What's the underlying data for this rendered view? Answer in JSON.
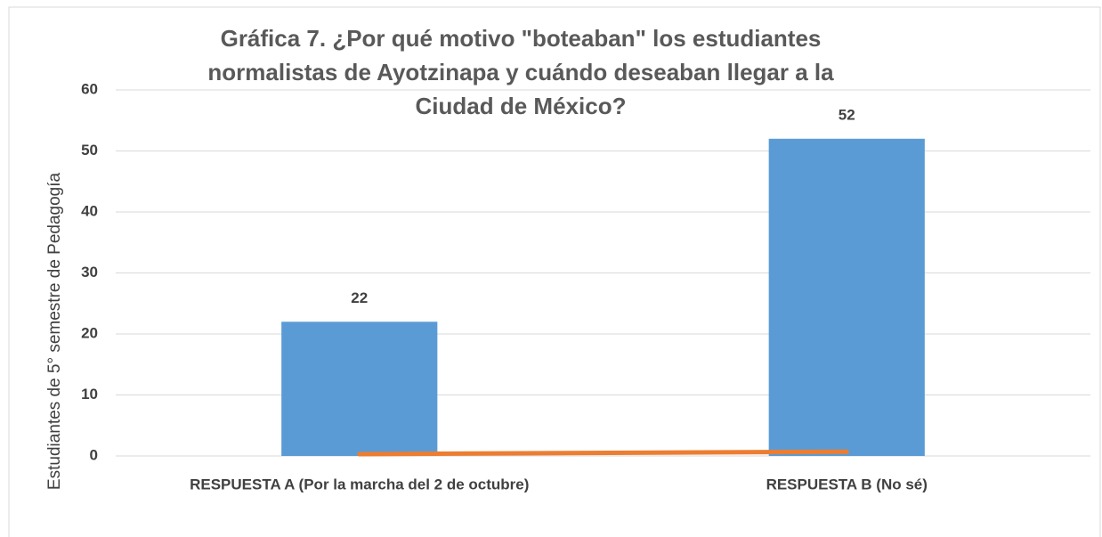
{
  "chart_data": {
    "type": "bar",
    "title": [
      "Gráfica 7. ¿Por qué motivo \"boteaban\" los estudiantes",
      "normalistas de Ayotzinapa y cuándo deseaban llegar a la",
      "Ciudad de México?"
    ],
    "y_label": "Estudiantes de 5° semestre de  Pedagogía",
    "categories": [
      "RESPUESTA A (Por la marcha del 2 de octubre)",
      "RESPUESTA B (No sé)"
    ],
    "series": [
      {
        "type": "bar",
        "color": "#5b9bd5",
        "values": [
          22,
          52
        ]
      },
      {
        "type": "line",
        "color": "#ed7d31",
        "values": [
          0.3,
          0.7
        ]
      }
    ],
    "ylim": [
      0,
      60
    ],
    "yticks": [
      0,
      10,
      20,
      30,
      40,
      50,
      60
    ],
    "grid": true
  }
}
